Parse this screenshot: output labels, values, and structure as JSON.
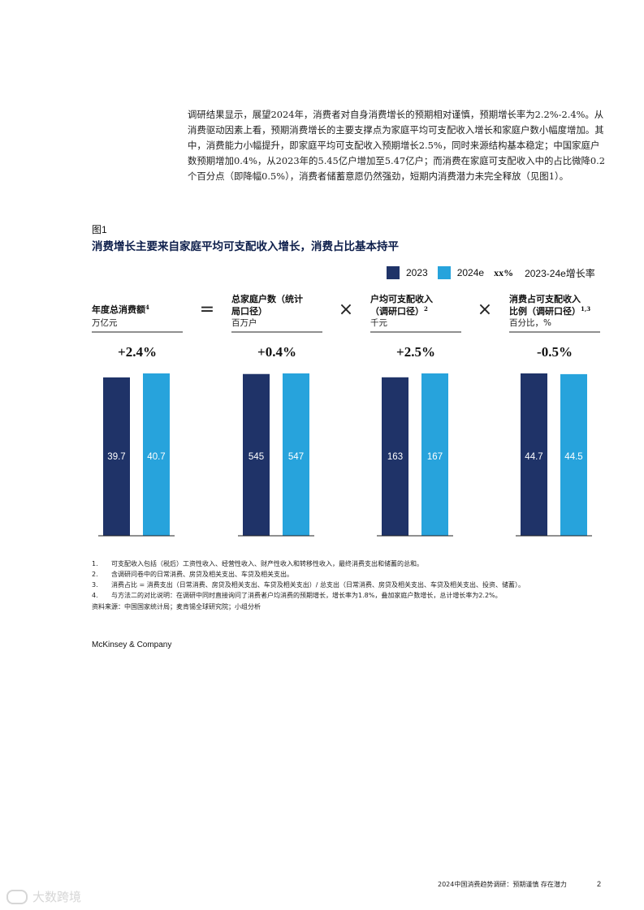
{
  "intro_text": "调研结果显示，展望2024年，消费者对自身消费增长的预期相对谨慎，预期增长率为2.2%-2.4%。从消费驱动因素上看，预期消费增长的主要支撑点为家庭平均可支配收入增长和家庭户数小幅度增加。其中，消费能力小幅提升，即家庭平均可支配收入预期增长2.5%，同时来源结构基本稳定；中国家庭户数预期增加0.4%，从2023年的5.45亿户增加至5.47亿户；而消费在家庭可支配收入中的占比微降0.2个百分点（即降幅0.5%），消费者储蓄意愿仍然强劲，短期内消费潜力未完全释放（见图1）。",
  "figure": {
    "label": "图1",
    "title": "消费增长主要来自家庭平均可支配收入增长，消费占比基本持平"
  },
  "legend": {
    "label_2023": "2023",
    "label_2024e": "2024e",
    "pct_symbol": "xx%",
    "pct_label": "2023-24e增长率",
    "color_2023": "#1f3368",
    "color_2024e": "#27a3dc"
  },
  "operators": [
    "=",
    "×",
    "×"
  ],
  "chart_data": [
    {
      "type": "bar",
      "title_lines": [
        "年度总消费额"
      ],
      "title_sup": "4",
      "unit": "万亿元",
      "growth": "+2.4%",
      "series": [
        {
          "name": "2023",
          "value": 39.7,
          "label": "39.7"
        },
        {
          "name": "2024e",
          "value": 40.7,
          "label": "40.7"
        }
      ]
    },
    {
      "type": "bar",
      "title_lines": [
        "总家庭户数（统计",
        "局口径）"
      ],
      "title_sup": "",
      "unit": "百万户",
      "growth": "+0.4%",
      "series": [
        {
          "name": "2023",
          "value": 545,
          "label": "545"
        },
        {
          "name": "2024e",
          "value": 547,
          "label": "547"
        }
      ]
    },
    {
      "type": "bar",
      "title_lines": [
        "户均可支配收入",
        "（调研口径）"
      ],
      "title_sup": "2",
      "unit": "千元",
      "growth": "+2.5%",
      "series": [
        {
          "name": "2023",
          "value": 163,
          "label": "163"
        },
        {
          "name": "2024e",
          "value": 167,
          "label": "167"
        }
      ]
    },
    {
      "type": "bar",
      "title_lines": [
        "消费占可支配收入",
        "比例（调研口径）"
      ],
      "title_sup": "1,3",
      "unit": "百分比，%",
      "growth": "-0.5%",
      "series": [
        {
          "name": "2023",
          "value": 44.7,
          "label": "44.7"
        },
        {
          "name": "2024e",
          "value": 44.5,
          "label": "44.5"
        }
      ]
    }
  ],
  "footnotes": [
    {
      "num": "1.",
      "text": "可支配收入包括（税后）工资性收入、经营性收入、财产性收入和转移性收入，最终消费支出和储蓄的总和。"
    },
    {
      "num": "2.",
      "text": "含调研问卷中的日常消费、房贷及相关支出、车贷及相关支出。"
    },
    {
      "num": "3.",
      "text": "消费占比 = 消费支出（日常消费、房贷及相关支出、车贷及相关支出）/ 总支出（日常消费、房贷及相关支出、车贷及相关支出、投资、储蓄）。"
    },
    {
      "num": "4.",
      "text": "与方法二的对比说明：在调研中同时直接询问了消费者户均消费的预期增长，增长率为1.8%，叠加家庭户数增长，总计增长率为2.2%。"
    }
  ],
  "source": "资料来源：中国国家统计局；麦肯锡全球研究院；小组分析",
  "brand": "McKinsey & Company",
  "footer": {
    "title": "2024中国消费趋势调研：预期谨慎 存在潜力",
    "page": "2"
  },
  "watermark": "大数跨境"
}
